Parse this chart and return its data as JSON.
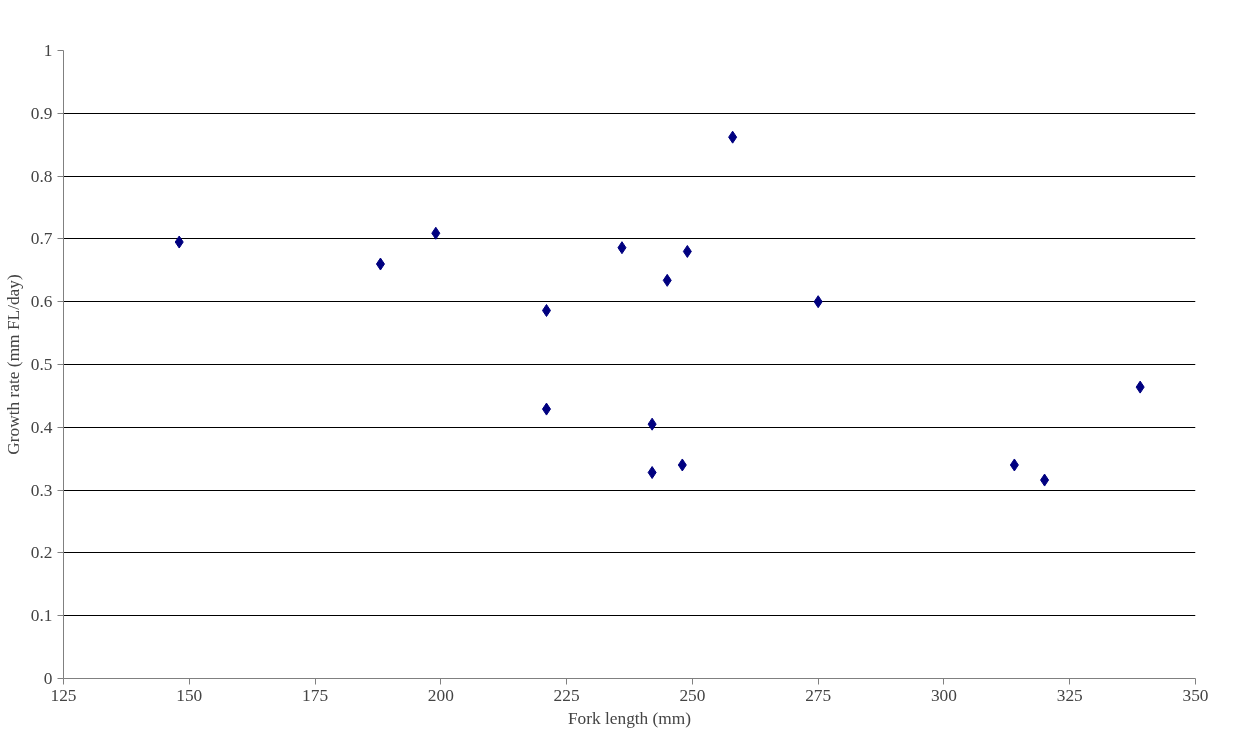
{
  "chart_data": {
    "type": "scatter",
    "xlabel": "Fork length (mm)",
    "ylabel": "Growth rate (mm FL/day)",
    "x": [
      148,
      188,
      199,
      221,
      221,
      236,
      242,
      242,
      245,
      248,
      249,
      258,
      275,
      314,
      320,
      339
    ],
    "values": [
      0.695,
      0.66,
      0.709,
      0.586,
      0.429,
      0.686,
      0.405,
      0.328,
      0.634,
      0.34,
      0.68,
      0.862,
      0.6,
      0.34,
      0.316,
      0.464
    ],
    "color": "#000080",
    "marker": "diamond",
    "xlim": [
      125,
      350
    ],
    "xticks": [
      125,
      150,
      175,
      200,
      225,
      250,
      275,
      300,
      325,
      350
    ],
    "ylim": [
      0,
      1
    ],
    "yticks": [
      0,
      0.1,
      0.2,
      0.3,
      0.4,
      0.5,
      0.6,
      0.7,
      0.8,
      0.9,
      1
    ],
    "grid": "y"
  }
}
